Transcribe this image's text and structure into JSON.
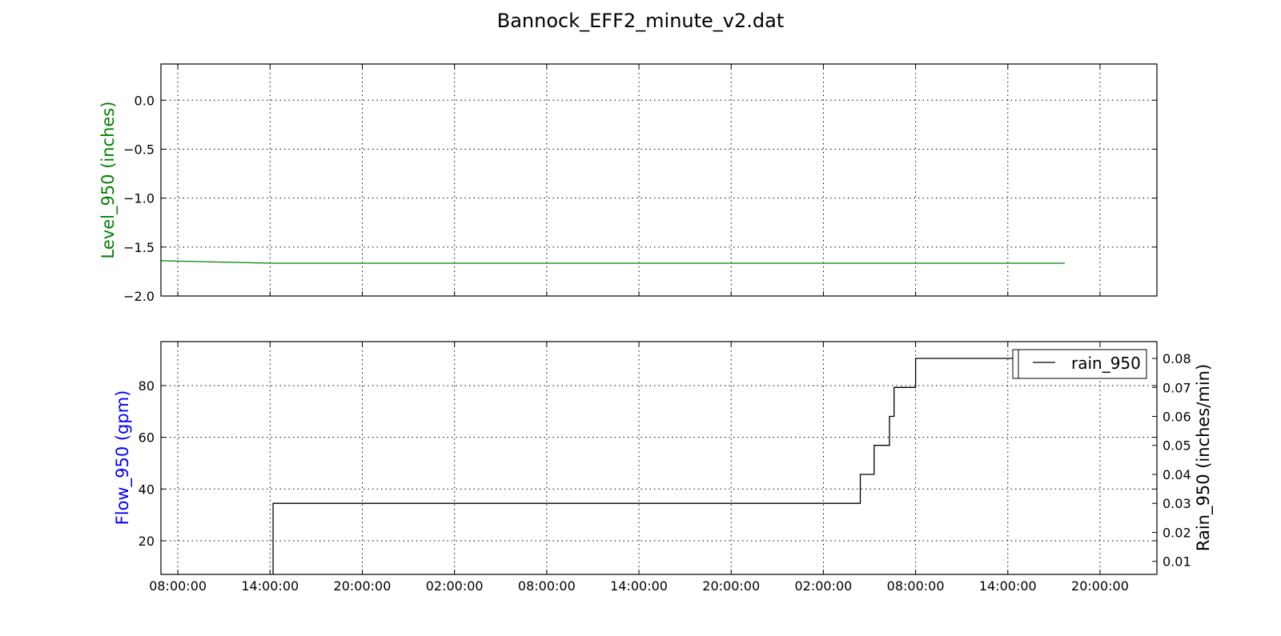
{
  "chart_data": {
    "type": "line",
    "title": "Bannock_EFF2_minute_v2.dat",
    "x_tick_labels": [
      "08:00:00",
      "14:00:00",
      "20:00:00",
      "02:00:00",
      "08:00:00",
      "14:00:00",
      "20:00:00",
      "02:00:00",
      "08:00:00",
      "14:00:00",
      "20:00:00"
    ],
    "x_tick_hours": [
      8,
      14,
      20,
      26,
      32,
      38,
      44,
      50,
      56,
      62,
      68
    ],
    "xlim_hours": [
      6.9,
      71.7
    ],
    "panels": [
      {
        "ylabel": "Level_950 (inches)",
        "ylabel_color": "#008000",
        "ylim": [
          -2.0,
          0.37
        ],
        "yticks": [
          0.0,
          -0.5,
          -1.0,
          -1.5,
          -2.0
        ],
        "ytick_labels": [
          "0.0",
          "−0.5",
          "−1.0",
          "−1.5",
          "−2.0"
        ],
        "series": [
          {
            "color": "#008000",
            "x_hours": [
              6.9,
              14.0,
              65.7
            ],
            "y": [
              -1.64,
              -1.665,
              -1.665
            ]
          }
        ]
      },
      {
        "ylabel": "Flow_950 (gpm)",
        "ylabel_color": "#0000ff",
        "ylim": [
          7,
          97
        ],
        "yticks": [
          20,
          40,
          60,
          80
        ],
        "ytick_labels": [
          "20",
          "40",
          "60",
          "80"
        ],
        "right_ylabel": "Rain_950 (inches/min)",
        "right_ylim": [
          0.0055,
          0.0858
        ],
        "right_yticks": [
          0.01,
          0.02,
          0.03,
          0.04,
          0.05,
          0.06,
          0.07,
          0.08
        ],
        "right_ytick_labels": [
          "0.01",
          "0.02",
          "0.03",
          "0.04",
          "0.05",
          "0.06",
          "0.07",
          "0.08"
        ],
        "legend": {
          "location": "top-right",
          "entries": [
            "rain_950"
          ]
        },
        "series": [
          {
            "name": "rain_950",
            "color": "#000000",
            "axis": "right",
            "x_hours": [
              14.2,
              14.2,
              52.4,
              52.4,
              53.3,
              53.3,
              54.3,
              54.3,
              54.6,
              54.6,
              56.0,
              56.0,
              62.3
            ],
            "y": [
              0.0055,
              0.03,
              0.03,
              0.04,
              0.04,
              0.05,
              0.05,
              0.06,
              0.06,
              0.07,
              0.07,
              0.08,
              0.08
            ]
          }
        ]
      }
    ],
    "grid": true
  }
}
